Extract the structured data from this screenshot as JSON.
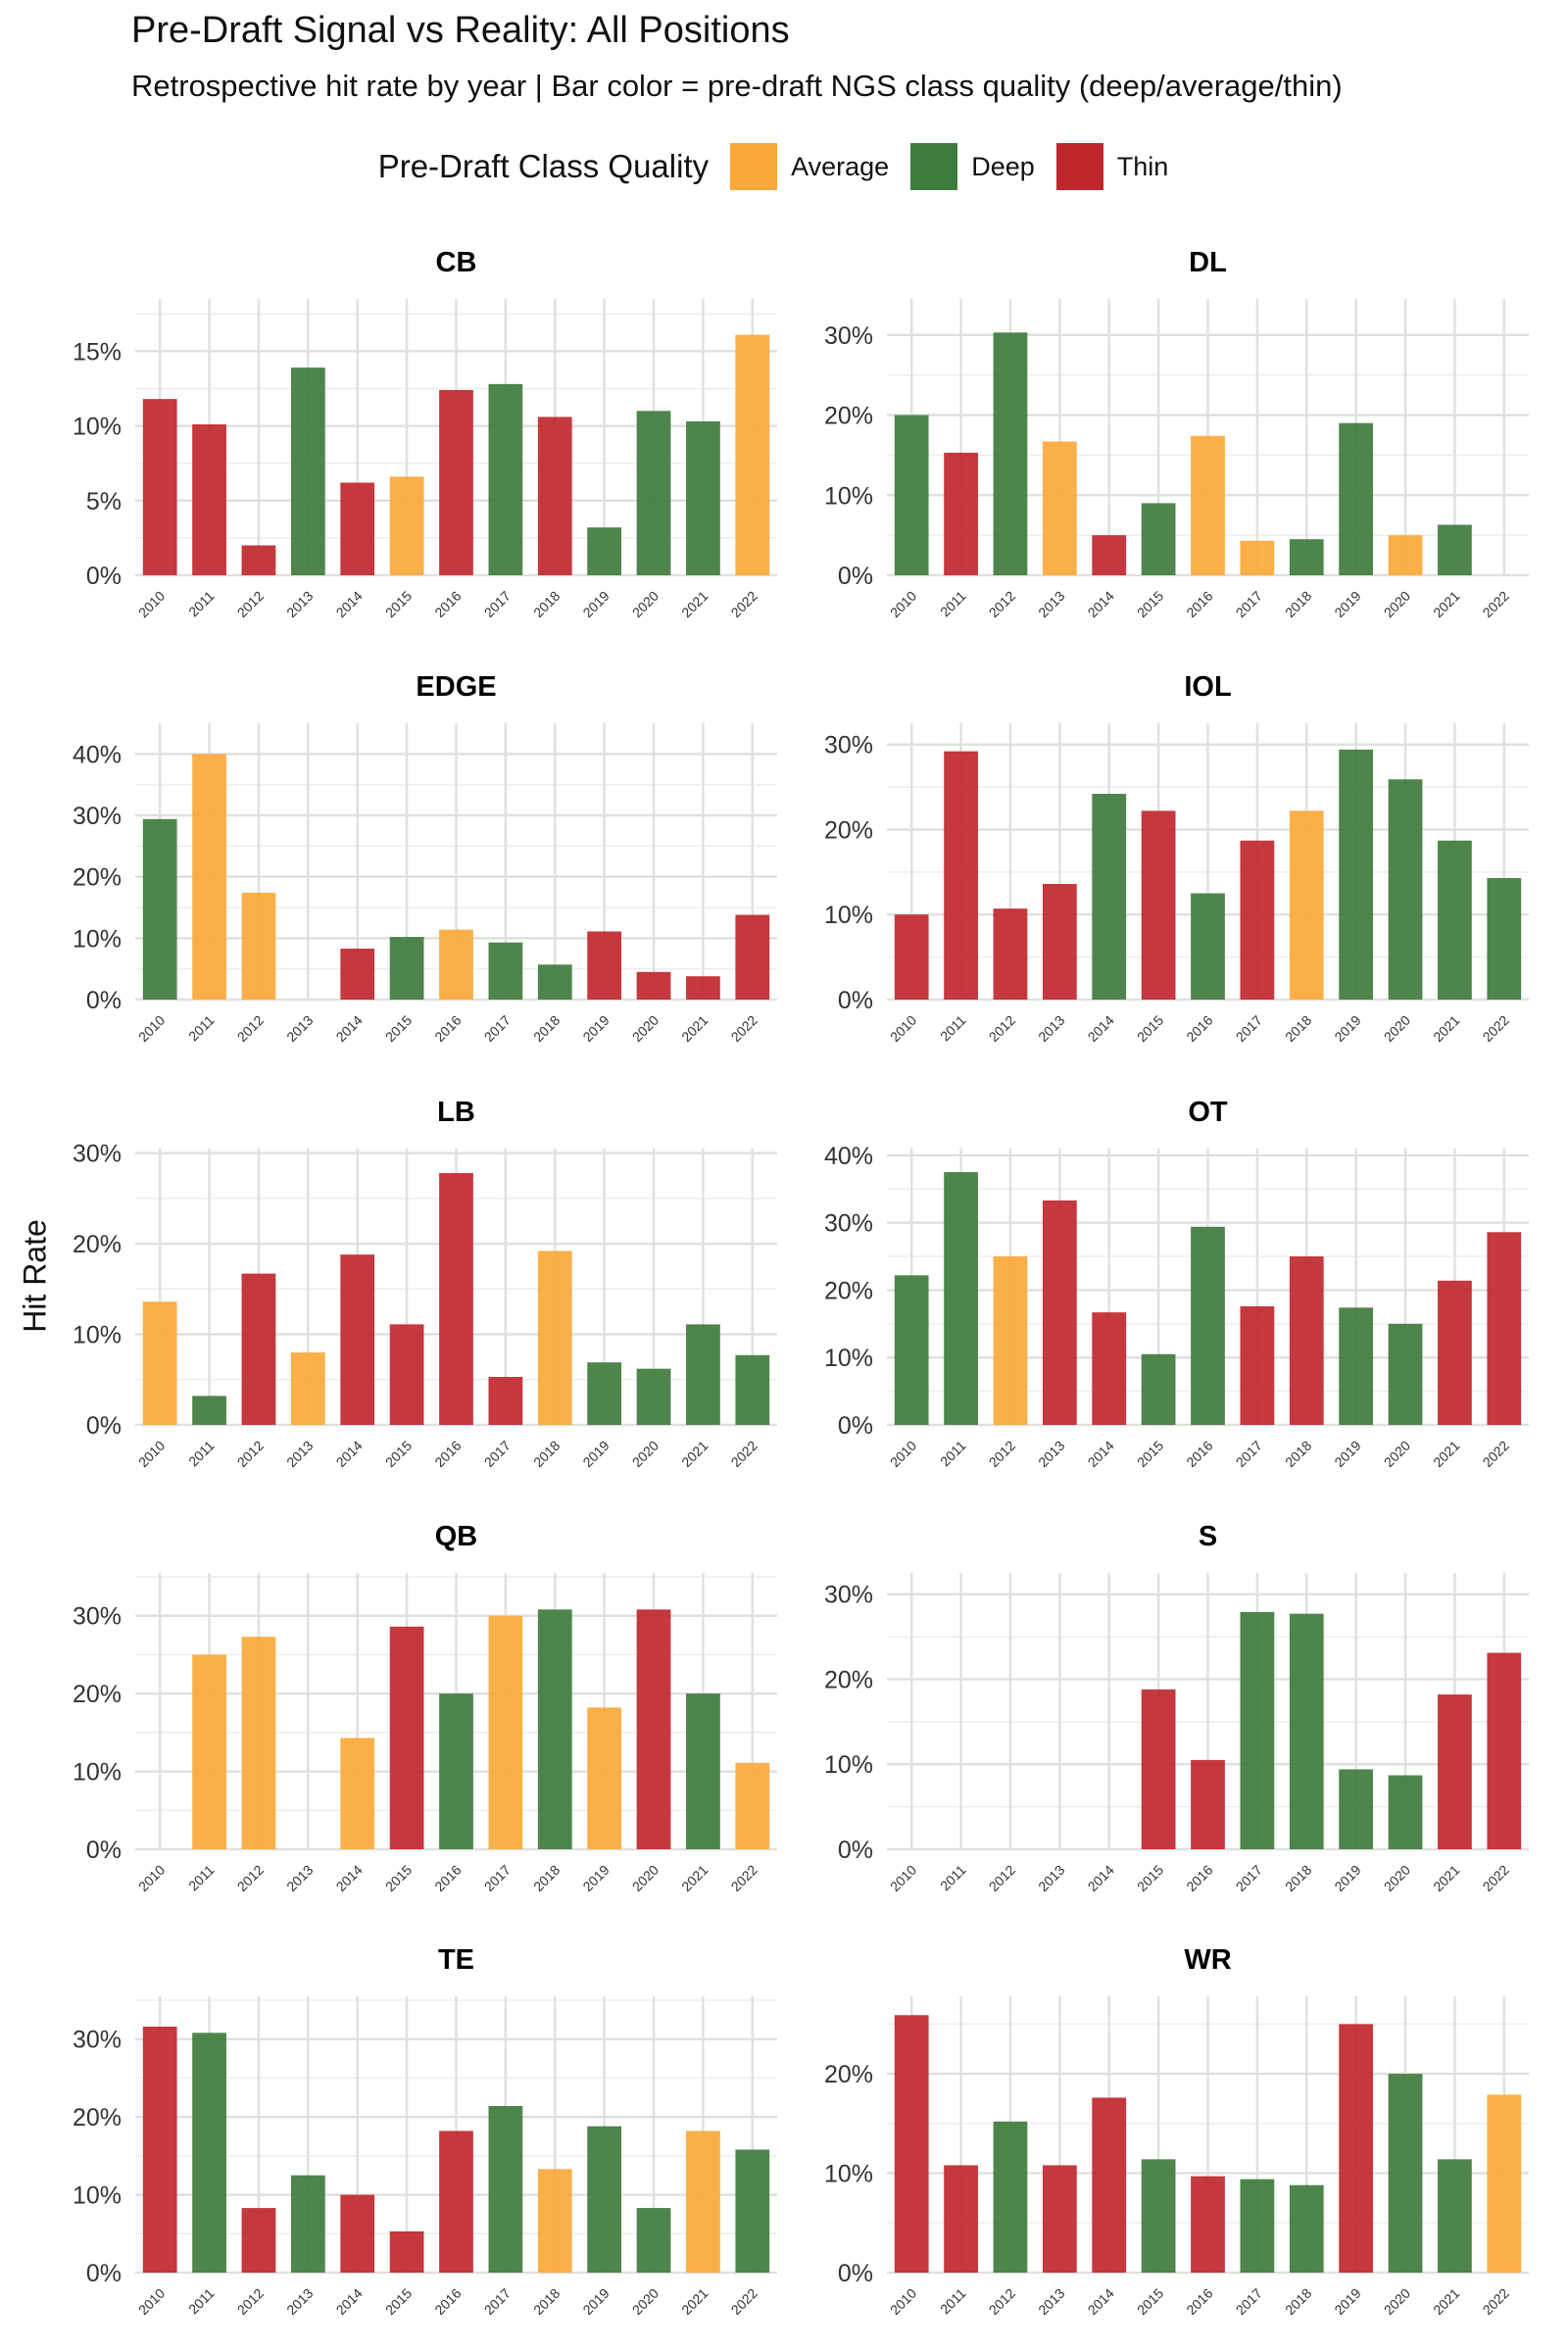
{
  "title": "Pre-Draft Signal vs Reality: All Positions",
  "subtitle": "Retrospective hit rate by year | Bar color = pre-draft NGS class quality (deep/average/thin)",
  "legend": {
    "title": "Pre-Draft Class Quality",
    "items": [
      {
        "label": "Average",
        "color": "#FBA83A"
      },
      {
        "label": "Deep",
        "color": "#3F7B3C"
      },
      {
        "label": "Thin",
        "color": "#C0272D"
      }
    ]
  },
  "ylabel": "Hit Rate",
  "chart_data": [
    {
      "type": "bar",
      "title": "CB",
      "ylabel": "Hit Rate",
      "categories": [
        "2010",
        "2011",
        "2012",
        "2013",
        "2014",
        "2015",
        "2016",
        "2017",
        "2018",
        "2019",
        "2020",
        "2021",
        "2022"
      ],
      "values": [
        11.8,
        10.1,
        2.0,
        13.9,
        6.2,
        6.6,
        12.4,
        12.8,
        10.6,
        3.2,
        11.0,
        10.3,
        16.1
      ],
      "quality": [
        "Thin",
        "Thin",
        "Thin",
        "Deep",
        "Thin",
        "Average",
        "Thin",
        "Deep",
        "Thin",
        "Deep",
        "Deep",
        "Deep",
        "Average"
      ],
      "ylim": [
        0,
        18.5
      ],
      "yticks": [
        0,
        5,
        10,
        15
      ],
      "yticklabels": [
        "0%",
        "5%",
        "10%",
        "15%"
      ]
    },
    {
      "type": "bar",
      "title": "DL",
      "ylabel": "Hit Rate",
      "categories": [
        "2010",
        "2011",
        "2012",
        "2013",
        "2014",
        "2015",
        "2016",
        "2017",
        "2018",
        "2019",
        "2020",
        "2021",
        "2022"
      ],
      "values": [
        20.0,
        15.3,
        30.3,
        16.7,
        5.0,
        9.0,
        17.4,
        4.3,
        4.5,
        19.0,
        5.0,
        6.3,
        null
      ],
      "quality": [
        "Deep",
        "Thin",
        "Deep",
        "Average",
        "Thin",
        "Deep",
        "Average",
        "Average",
        "Deep",
        "Deep",
        "Average",
        "Deep",
        null
      ],
      "ylim": [
        0,
        34.5
      ],
      "yticks": [
        0,
        10,
        20,
        30
      ],
      "yticklabels": [
        "0%",
        "10%",
        "20%",
        "30%"
      ]
    },
    {
      "type": "bar",
      "title": "EDGE",
      "ylabel": "Hit Rate",
      "categories": [
        "2010",
        "2011",
        "2012",
        "2013",
        "2014",
        "2015",
        "2016",
        "2017",
        "2018",
        "2019",
        "2020",
        "2021",
        "2022"
      ],
      "values": [
        29.4,
        40.0,
        17.4,
        null,
        8.3,
        10.2,
        11.4,
        9.3,
        5.7,
        11.1,
        4.5,
        3.8,
        13.8
      ],
      "quality": [
        "Deep",
        "Average",
        "Average",
        null,
        "Thin",
        "Deep",
        "Average",
        "Deep",
        "Deep",
        "Thin",
        "Thin",
        "Thin",
        "Thin"
      ],
      "ylim": [
        0,
        45
      ],
      "yticks": [
        0,
        10,
        20,
        30,
        40
      ],
      "yticklabels": [
        "0%",
        "10%",
        "20%",
        "30%",
        "40%"
      ]
    },
    {
      "type": "bar",
      "title": "IOL",
      "ylabel": "Hit Rate",
      "categories": [
        "2010",
        "2011",
        "2012",
        "2013",
        "2014",
        "2015",
        "2016",
        "2017",
        "2018",
        "2019",
        "2020",
        "2021",
        "2022"
      ],
      "values": [
        10.0,
        29.2,
        10.7,
        13.6,
        24.2,
        22.2,
        12.5,
        18.7,
        22.2,
        29.4,
        25.9,
        18.7,
        14.3
      ],
      "quality": [
        "Thin",
        "Thin",
        "Thin",
        "Thin",
        "Deep",
        "Thin",
        "Deep",
        "Thin",
        "Average",
        "Deep",
        "Deep",
        "Deep",
        "Deep"
      ],
      "ylim": [
        0,
        32.5
      ],
      "yticks": [
        0,
        10,
        20,
        30
      ],
      "yticklabels": [
        "0%",
        "10%",
        "20%",
        "30%"
      ]
    },
    {
      "type": "bar",
      "title": "LB",
      "ylabel": "Hit Rate",
      "categories": [
        "2010",
        "2011",
        "2012",
        "2013",
        "2014",
        "2015",
        "2016",
        "2017",
        "2018",
        "2019",
        "2020",
        "2021",
        "2022"
      ],
      "values": [
        13.6,
        3.2,
        16.7,
        8.0,
        18.8,
        11.1,
        27.8,
        5.3,
        19.2,
        6.9,
        6.2,
        11.1,
        7.7
      ],
      "quality": [
        "Average",
        "Deep",
        "Thin",
        "Average",
        "Thin",
        "Thin",
        "Thin",
        "Thin",
        "Average",
        "Deep",
        "Deep",
        "Deep",
        "Deep"
      ],
      "ylim": [
        0,
        30.5
      ],
      "yticks": [
        0,
        10,
        20,
        30
      ],
      "yticklabels": [
        "0%",
        "10%",
        "20%",
        "30%"
      ]
    },
    {
      "type": "bar",
      "title": "OT",
      "ylabel": "Hit Rate",
      "categories": [
        "2010",
        "2011",
        "2012",
        "2013",
        "2014",
        "2015",
        "2016",
        "2017",
        "2018",
        "2019",
        "2020",
        "2021",
        "2022"
      ],
      "values": [
        22.2,
        37.5,
        25.0,
        33.3,
        16.7,
        10.5,
        29.4,
        17.6,
        25.0,
        17.4,
        15.0,
        21.4,
        28.6
      ],
      "quality": [
        "Deep",
        "Deep",
        "Average",
        "Thin",
        "Thin",
        "Deep",
        "Deep",
        "Thin",
        "Thin",
        "Deep",
        "Deep",
        "Thin",
        "Thin"
      ],
      "ylim": [
        0,
        41
      ],
      "yticks": [
        0,
        10,
        20,
        30,
        40
      ],
      "yticklabels": [
        "0%",
        "10%",
        "20%",
        "30%",
        "40%"
      ]
    },
    {
      "type": "bar",
      "title": "QB",
      "ylabel": "Hit Rate",
      "categories": [
        "2010",
        "2011",
        "2012",
        "2013",
        "2014",
        "2015",
        "2016",
        "2017",
        "2018",
        "2019",
        "2020",
        "2021",
        "2022"
      ],
      "values": [
        null,
        25.0,
        27.3,
        null,
        14.3,
        28.6,
        20.0,
        30.0,
        30.8,
        18.2,
        30.8,
        20.0,
        11.1
      ],
      "quality": [
        null,
        "Average",
        "Average",
        null,
        "Average",
        "Thin",
        "Deep",
        "Average",
        "Deep",
        "Average",
        "Thin",
        "Deep",
        "Average"
      ],
      "ylim": [
        0,
        35.5
      ],
      "yticks": [
        0,
        10,
        20,
        30
      ],
      "yticklabels": [
        "0%",
        "10%",
        "20%",
        "30%"
      ]
    },
    {
      "type": "bar",
      "title": "S",
      "ylabel": "Hit Rate",
      "categories": [
        "2010",
        "2011",
        "2012",
        "2013",
        "2014",
        "2015",
        "2016",
        "2017",
        "2018",
        "2019",
        "2020",
        "2021",
        "2022"
      ],
      "values": [
        null,
        null,
        null,
        null,
        null,
        18.8,
        10.5,
        27.9,
        27.7,
        9.4,
        8.7,
        18.2,
        23.1
      ],
      "quality": [
        null,
        null,
        null,
        null,
        null,
        "Thin",
        "Thin",
        "Deep",
        "Deep",
        "Deep",
        "Deep",
        "Thin",
        "Thin"
      ],
      "ylim": [
        0,
        32.5
      ],
      "yticks": [
        0,
        10,
        20,
        30
      ],
      "yticklabels": [
        "0%",
        "10%",
        "20%",
        "30%"
      ]
    },
    {
      "type": "bar",
      "title": "TE",
      "ylabel": "Hit Rate",
      "categories": [
        "2010",
        "2011",
        "2012",
        "2013",
        "2014",
        "2015",
        "2016",
        "2017",
        "2018",
        "2019",
        "2020",
        "2021",
        "2022"
      ],
      "values": [
        31.6,
        30.8,
        8.3,
        12.5,
        10.0,
        5.3,
        18.2,
        21.4,
        13.3,
        18.8,
        8.3,
        18.2,
        15.8
      ],
      "quality": [
        "Thin",
        "Deep",
        "Thin",
        "Deep",
        "Thin",
        "Thin",
        "Thin",
        "Deep",
        "Average",
        "Deep",
        "Deep",
        "Average",
        "Deep"
      ],
      "ylim": [
        0,
        35.5
      ],
      "yticks": [
        0,
        10,
        20,
        30
      ],
      "yticklabels": [
        "0%",
        "10%",
        "20%",
        "30%"
      ]
    },
    {
      "type": "bar",
      "title": "WR",
      "ylabel": "Hit Rate",
      "categories": [
        "2010",
        "2011",
        "2012",
        "2013",
        "2014",
        "2015",
        "2016",
        "2017",
        "2018",
        "2019",
        "2020",
        "2021",
        "2022"
      ],
      "values": [
        25.9,
        10.8,
        15.2,
        10.8,
        17.6,
        11.4,
        9.7,
        9.4,
        8.8,
        25.0,
        20.0,
        11.4,
        17.9
      ],
      "quality": [
        "Thin",
        "Thin",
        "Deep",
        "Thin",
        "Thin",
        "Deep",
        "Thin",
        "Deep",
        "Deep",
        "Thin",
        "Deep",
        "Deep",
        "Average"
      ],
      "ylim": [
        0,
        27.8
      ],
      "yticks": [
        0,
        10,
        20
      ],
      "yticklabels": [
        "0%",
        "10%",
        "20%"
      ]
    }
  ]
}
